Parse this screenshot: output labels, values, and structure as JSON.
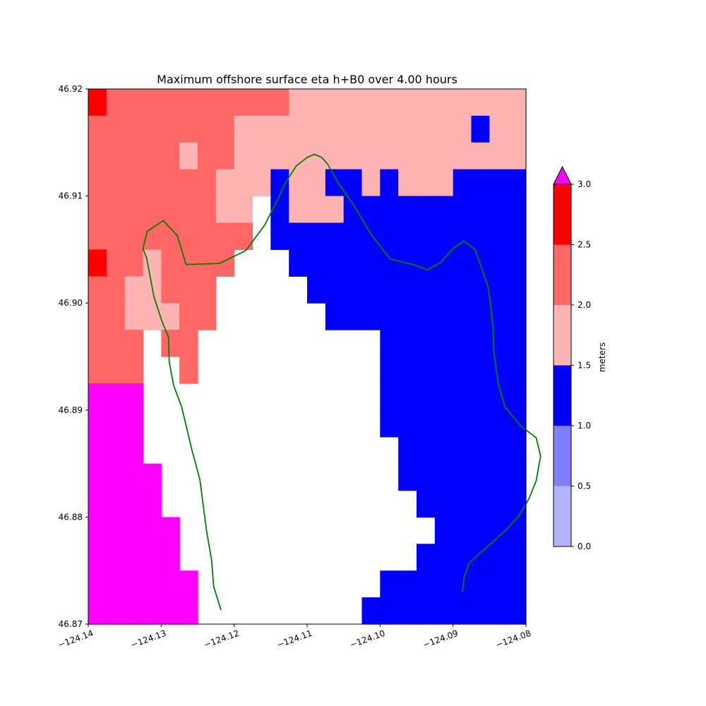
{
  "chart_data": {
    "type": "heatmap",
    "title": "Maximum offshore surface eta h+B0 over 4.00 hours",
    "xlim": [
      -124.14,
      -124.08
    ],
    "ylim": [
      46.87,
      46.92
    ],
    "x_ticks": [
      -124.14,
      -124.13,
      -124.12,
      -124.11,
      -124.1,
      -124.09,
      -124.08
    ],
    "x_tick_labels": [
      "−124.14",
      "−124.13",
      "−124.12",
      "−124.11",
      "−124.10",
      "−124.09",
      "−124.08"
    ],
    "y_ticks": [
      46.87,
      46.88,
      46.89,
      46.9,
      46.91,
      46.92
    ],
    "y_tick_labels": [
      "46.87",
      "46.88",
      "46.89",
      "46.90",
      "46.91",
      "46.92"
    ],
    "grid": false,
    "grid_info": {
      "x_start": -124.14,
      "cell_dx": 0.0025,
      "cols": 24,
      "y_start": 46.92,
      "cell_dy": -0.0025,
      "rows": 20,
      "legend": ". = land/no data, 1 = 0.0-0.5, 2 = 0.5-1.0, 3 = 1.0-1.5, 4 = 1.5-2.0, 5 = 2.0-2.5, 6 = 2.5-3.0, 7 = above 3.0"
    },
    "grid_rows": [
      "655555555555444444444444",
      "555555555555444444444444",
      "555555545544444444444344",
      "555555555444344344443333",
      "555555555.4.3444343443333",
      "55555555555..33333333333",
      "65545555555..33333333333",
      "555544555.....3333333333",
      "555444.5........33333333",
      "5544..55........33333333",
      "5555..55........33333333",
      "7777....................",
      "7777........3333333333333",
      "777.........333333333333",
      "7777......3333333333333",
      "7777.......333333333333",
      "77777..........33333333",
      "77777..........33333333",
      "777777.........33333333",
      "777777........333333333"
    ],
    "cells": {
      "comment": "value codes per cell (row 0 = top, 46.9200 to 46.9175); rendered by script",
      "rows": [
        [
          6,
          5,
          5,
          5,
          5,
          5,
          5,
          5,
          5,
          5,
          5,
          4,
          4,
          4,
          4,
          4,
          4,
          4,
          4,
          4,
          4,
          4,
          4,
          4
        ],
        [
          5,
          5,
          5,
          5,
          5,
          5,
          5,
          5,
          4,
          4,
          4,
          4,
          4,
          4,
          4,
          4,
          4,
          4,
          4,
          4,
          4,
          3,
          4,
          4
        ],
        [
          5,
          5,
          5,
          5,
          5,
          4,
          5,
          5,
          4,
          4,
          4,
          4,
          4,
          4,
          4,
          4,
          4,
          4,
          4,
          4,
          4,
          4,
          4,
          4
        ],
        [
          5,
          5,
          5,
          5,
          5,
          5,
          5,
          4,
          4,
          4,
          3,
          4,
          4,
          3,
          3,
          4,
          3,
          4,
          4,
          4,
          3,
          3,
          3,
          3
        ],
        [
          5,
          5,
          5,
          5,
          5,
          5,
          5,
          4,
          4,
          0,
          3,
          4,
          4,
          4,
          3,
          3,
          3,
          3,
          3,
          3,
          3,
          3,
          3,
          3
        ],
        [
          5,
          5,
          5,
          5,
          5,
          5,
          5,
          5,
          5,
          0,
          3,
          3,
          3,
          3,
          3,
          3,
          3,
          3,
          3,
          3,
          3,
          3,
          3,
          3
        ],
        [
          6,
          5,
          5,
          4,
          5,
          5,
          5,
          5,
          0,
          0,
          0,
          3,
          3,
          3,
          3,
          3,
          3,
          3,
          3,
          3,
          3,
          3,
          3,
          3
        ],
        [
          5,
          5,
          4,
          4,
          5,
          5,
          5,
          0,
          0,
          0,
          0,
          0,
          3,
          3,
          3,
          3,
          3,
          3,
          3,
          3,
          3,
          3,
          3,
          3
        ],
        [
          5,
          5,
          4,
          4,
          4,
          5,
          5,
          0,
          0,
          0,
          0,
          0,
          0,
          3,
          3,
          3,
          3,
          3,
          3,
          3,
          3,
          3,
          3,
          3
        ],
        [
          5,
          5,
          5,
          0,
          5,
          5,
          0,
          0,
          0,
          0,
          0,
          0,
          0,
          0,
          0,
          0,
          3,
          3,
          3,
          3,
          3,
          3,
          3,
          3
        ],
        [
          5,
          5,
          5,
          0,
          0,
          5,
          0,
          0,
          0,
          0,
          0,
          0,
          0,
          0,
          0,
          0,
          3,
          3,
          3,
          3,
          3,
          3,
          3,
          3
        ],
        [
          7,
          7,
          7,
          0,
          0,
          0,
          0,
          0,
          0,
          0,
          0,
          0,
          0,
          0,
          0,
          0,
          3,
          3,
          3,
          3,
          3,
          3,
          3,
          3
        ],
        [
          7,
          7,
          7,
          0,
          0,
          0,
          0,
          0,
          0,
          0,
          0,
          0,
          0,
          0,
          0,
          0,
          3,
          3,
          3,
          3,
          3,
          3,
          3,
          3
        ],
        [
          7,
          7,
          7,
          0,
          0,
          0,
          0,
          0,
          0,
          0,
          0,
          0,
          0,
          0,
          0,
          0,
          0,
          3,
          3,
          3,
          3,
          3,
          3,
          3
        ],
        [
          7,
          7,
          7,
          7,
          0,
          0,
          0,
          0,
          0,
          0,
          0,
          0,
          0,
          0,
          0,
          0,
          0,
          3,
          3,
          3,
          3,
          3,
          3,
          3
        ],
        [
          7,
          7,
          7,
          7,
          0,
          0,
          0,
          0,
          0,
          0,
          0,
          0,
          0,
          0,
          0,
          0,
          0,
          0,
          3,
          3,
          3,
          3,
          3,
          3
        ],
        [
          7,
          7,
          7,
          7,
          7,
          0,
          0,
          0,
          0,
          0,
          0,
          0,
          0,
          0,
          0,
          0,
          0,
          0,
          0,
          3,
          3,
          3,
          3,
          3
        ],
        [
          7,
          7,
          7,
          7,
          7,
          0,
          0,
          0,
          0,
          0,
          0,
          0,
          0,
          0,
          0,
          0,
          0,
          0,
          3,
          3,
          3,
          3,
          3,
          3
        ],
        [
          7,
          7,
          7,
          7,
          7,
          7,
          0,
          0,
          0,
          0,
          0,
          0,
          0,
          0,
          0,
          0,
          3,
          3,
          3,
          3,
          3,
          3,
          3,
          3
        ],
        [
          7,
          7,
          7,
          7,
          7,
          7,
          0,
          0,
          0,
          0,
          0,
          0,
          0,
          0,
          0,
          3,
          3,
          3,
          3,
          3,
          3,
          3,
          3,
          3
        ]
      ]
    },
    "levels": [
      0.0,
      0.5,
      1.0,
      1.5,
      2.0,
      2.5,
      3.0
    ],
    "level_colors": [
      "#b3b3ff",
      "#8080ff",
      "#0000ff",
      "#ffb3b3",
      "#ff6666",
      "#ff0000"
    ],
    "over_color": "#ff00ff",
    "colorbar": {
      "label": "meters",
      "ticks": [
        0.0,
        0.5,
        1.0,
        1.5,
        2.0,
        2.5,
        3.0
      ],
      "tick_labels": [
        "0.0",
        "0.5",
        "1.0",
        "1.5",
        "2.0",
        "2.5",
        "3.0"
      ],
      "extend": "max"
    },
    "shoreline": {
      "color": "#008000",
      "points": [
        [
          -124.1218,
          46.8713
        ],
        [
          -124.1228,
          46.8735
        ],
        [
          -124.1231,
          46.876
        ],
        [
          -124.1238,
          46.8788
        ],
        [
          -124.1247,
          46.8835
        ],
        [
          -124.1258,
          46.8863
        ],
        [
          -124.1272,
          46.8903
        ],
        [
          -124.1283,
          46.8923
        ],
        [
          -124.1289,
          46.8945
        ],
        [
          -124.129,
          46.8968
        ],
        [
          -124.1299,
          46.8983
        ],
        [
          -124.131,
          46.9006
        ],
        [
          -124.132,
          46.9042
        ],
        [
          -124.1325,
          46.9051
        ],
        [
          -124.1319,
          46.9067
        ],
        [
          -124.1297,
          46.9077
        ],
        [
          -124.1278,
          46.9063
        ],
        [
          -124.1266,
          46.9036
        ],
        [
          -124.122,
          46.9037
        ],
        [
          -124.1184,
          46.9049
        ],
        [
          -124.1158,
          46.9073
        ],
        [
          -124.1138,
          46.91
        ],
        [
          -124.113,
          46.9112
        ],
        [
          -124.1115,
          46.9128
        ],
        [
          -124.11,
          46.9136
        ],
        [
          -124.109,
          46.9139
        ],
        [
          -124.108,
          46.9136
        ],
        [
          -124.1072,
          46.913
        ],
        [
          -124.1058,
          46.9113
        ],
        [
          -124.1034,
          46.9089
        ],
        [
          -124.1011,
          46.9063
        ],
        [
          -124.0986,
          46.9041
        ],
        [
          -124.0955,
          46.9036
        ],
        [
          -124.0935,
          46.9031
        ],
        [
          -124.0917,
          46.9038
        ],
        [
          -124.09,
          46.9051
        ],
        [
          -124.0885,
          46.9058
        ],
        [
          -124.087,
          46.905
        ],
        [
          -124.0862,
          46.9035
        ],
        [
          -124.0852,
          46.9015
        ],
        [
          -124.0849,
          46.9001
        ],
        [
          -124.0845,
          46.8974
        ],
        [
          -124.0844,
          46.8954
        ],
        [
          -124.0838,
          46.8925
        ],
        [
          -124.0829,
          46.8903
        ],
        [
          -124.0807,
          46.8885
        ],
        [
          -124.0786,
          46.8874
        ],
        [
          -124.078,
          46.8857
        ],
        [
          -124.0786,
          46.8834
        ],
        [
          -124.0796,
          46.8817
        ],
        [
          -124.081,
          46.8801
        ],
        [
          -124.0826,
          46.8789
        ],
        [
          -124.0845,
          46.8777
        ],
        [
          -124.0862,
          46.8767
        ],
        [
          -124.0878,
          46.8757
        ],
        [
          -124.0885,
          46.8743
        ],
        [
          -124.0887,
          46.873
        ]
      ]
    }
  }
}
